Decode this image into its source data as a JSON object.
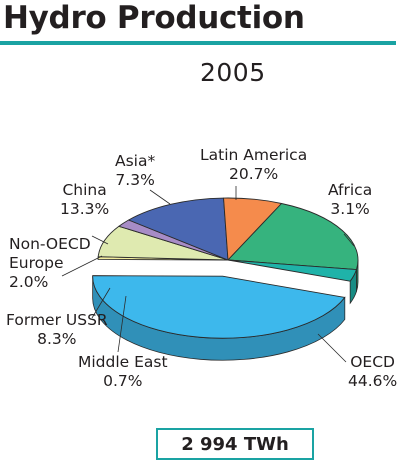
{
  "page": {
    "title": "Hydro Production"
  },
  "chart_data": {
    "type": "pie",
    "title": "2005",
    "total": "2 994 TWh",
    "slices": [
      {
        "name": "OECD",
        "label": "OECD",
        "value_label": "44.6%",
        "value": 44.6,
        "color": "#3db8ec"
      },
      {
        "name": "Middle East",
        "label": "Middle East",
        "value_label": "0.7%",
        "value": 0.7,
        "color": "#f2ed9d"
      },
      {
        "name": "Former USSR",
        "label": "Former USSR",
        "value_label": "8.3%",
        "value": 8.3,
        "color": "#dfeab0"
      },
      {
        "name": "Non-OECD Europe",
        "label_line1": "Non-OECD",
        "label_line2": "Europe",
        "value_label": "2.0%",
        "value": 2.0,
        "color": "#a78cc6"
      },
      {
        "name": "China",
        "label": "China",
        "value_label": "13.3%",
        "value": 13.3,
        "color": "#4a67b2"
      },
      {
        "name": "Asia*",
        "label": "Asia*",
        "value_label": "7.3%",
        "value": 7.3,
        "color": "#f58b4c"
      },
      {
        "name": "Latin America",
        "label": "Latin America",
        "value_label": "20.7%",
        "value": 20.7,
        "color": "#36b37e"
      },
      {
        "name": "Africa",
        "label": "Africa",
        "value_label": "3.1%",
        "value": 3.1,
        "color": "#1fb3a9"
      }
    ]
  }
}
